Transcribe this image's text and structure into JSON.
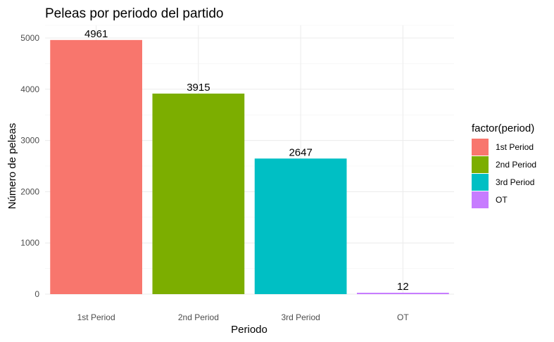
{
  "chart_data": {
    "type": "bar",
    "title": "Peleas por periodo del partido",
    "xlabel": "Periodo",
    "ylabel": "Número de peleas",
    "categories": [
      "1st Period",
      "2nd Period",
      "3rd Period",
      "OT"
    ],
    "values": [
      4961,
      3915,
      2647,
      12
    ],
    "colors": [
      "#F8766D",
      "#7CAE00",
      "#00BFC4",
      "#C77CFF"
    ],
    "ylim": [
      0,
      5000
    ],
    "yticks": [
      0,
      1000,
      2000,
      3000,
      4000,
      5000
    ],
    "grid": true,
    "legend": {
      "title": "factor(period)",
      "position": "right",
      "entries": [
        "1st Period",
        "2nd Period",
        "3rd Period",
        "OT"
      ]
    }
  }
}
